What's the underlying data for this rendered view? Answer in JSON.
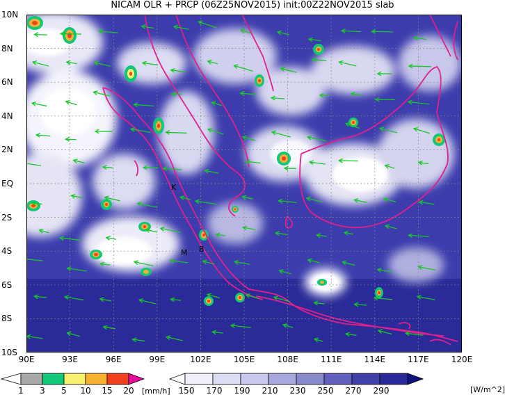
{
  "title": "NICAM OLR + PRCP (06Z25NOV2015) init:00Z22NOV2015 slab",
  "lat_labels": [
    "10N",
    "8N",
    "6N",
    "4N",
    "2N",
    "EQ",
    "2S",
    "4S",
    "6S",
    "8S",
    "10S"
  ],
  "lon_labels": [
    "90E",
    "93E",
    "96E",
    "99E",
    "102E",
    "105E",
    "108E",
    "111E",
    "114E",
    "117E",
    "120E"
  ],
  "places": {
    "k": "K",
    "m": "M",
    "b": "B"
  },
  "prcp_colorbar": {
    "labels": [
      "1",
      "3",
      "5",
      "10",
      "15",
      "20"
    ],
    "colors": [
      "#a8a8a8",
      "#10c878",
      "#f8f070",
      "#f8b030",
      "#f04020",
      "#e80c9c"
    ],
    "units": "[mm/h]"
  },
  "olr_colorbar": {
    "labels": [
      "150",
      "170",
      "190",
      "210",
      "230",
      "250",
      "270",
      "290"
    ],
    "colors": [
      "#ffffff",
      "#f0f0fa",
      "#dcdcf4",
      "#c8c8ec",
      "#a8a8dc",
      "#8888cc",
      "#6060bc",
      "#4040a8",
      "#282898",
      "#101080"
    ],
    "units": "[W/m^2]"
  },
  "colors": {
    "ocean": "#3c3cac",
    "coast": "#e0208c",
    "wind": "#18c828"
  }
}
